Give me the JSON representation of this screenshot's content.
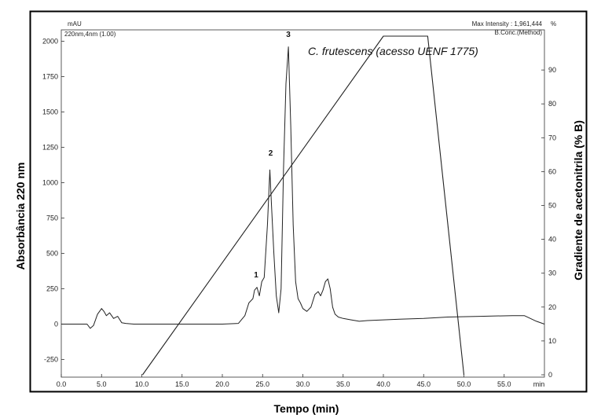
{
  "chart_data": {
    "type": "line",
    "title": "C. frutescens (acesso UENF 1775)",
    "xlabel": "Tempo (min)",
    "ylabel": "Absorbância 220 nm",
    "y2label": "Gradiente de acetonitrila (% B)",
    "xlim": [
      0,
      60
    ],
    "ylim": [
      -375,
      2080
    ],
    "y2lim": [
      0,
      100
    ],
    "x_ticks": [
      "0.0",
      "5.0",
      "10.0",
      "15.0",
      "20.0",
      "25.0",
      "30.0",
      "35.0",
      "40.0",
      "45.0",
      "50.0",
      "55.0"
    ],
    "x_unit": "min",
    "y_ticks": [
      "2000",
      "1750",
      "1500",
      "1250",
      "1000",
      "750",
      "500",
      "250",
      "0",
      "-250"
    ],
    "y2_ticks": [
      "90",
      "80",
      "70",
      "60",
      "50",
      "40",
      "30",
      "20",
      "10",
      "0"
    ],
    "y_unit": "mAU",
    "y2_unit": "%",
    "header_left": "220nm,4nm (1.00)",
    "header_right_top": "Max Intensity : 1,961,444",
    "header_right_bottom": "B.Conc.(Method)",
    "grid": false,
    "peak_labels": [
      {
        "label": "1",
        "x": 24.2,
        "y": 330
      },
      {
        "label": "2",
        "x": 26.0,
        "y": 1190
      },
      {
        "label": "3",
        "x": 28.2,
        "y": 2030
      }
    ],
    "series": [
      {
        "name": "220nm,4nm (1.00)",
        "axis": "left",
        "color": "#222222",
        "x": [
          0,
          3.2,
          3.6,
          4.0,
          4.5,
          5.0,
          5.3,
          5.6,
          6.0,
          6.5,
          7.0,
          7.5,
          8.0,
          9.0,
          12,
          16,
          20,
          22.0,
          22.8,
          23.3,
          23.8,
          24.0,
          24.3,
          24.6,
          24.9,
          25.2,
          25.6,
          25.9,
          26.1,
          26.4,
          26.7,
          27.0,
          27.3,
          27.6,
          27.9,
          28.2,
          28.5,
          28.8,
          29.1,
          29.4,
          29.7,
          30.0,
          30.5,
          31.0,
          31.5,
          31.9,
          32.2,
          32.5,
          32.8,
          33.1,
          33.4,
          33.7,
          34.0,
          34.4,
          35.0,
          36.0,
          37.0,
          38.0,
          40.0,
          42.0,
          45.0,
          48.0,
          52.0,
          56.0,
          57.5,
          59.0,
          60.0
        ],
        "y": [
          0,
          0,
          -30,
          -10,
          70,
          110,
          90,
          60,
          80,
          40,
          55,
          10,
          5,
          0,
          0,
          0,
          0,
          5,
          60,
          150,
          180,
          240,
          260,
          200,
          300,
          330,
          700,
          1090,
          850,
          500,
          200,
          80,
          250,
          1100,
          1700,
          1960,
          1400,
          700,
          300,
          180,
          150,
          110,
          90,
          120,
          210,
          230,
          200,
          240,
          300,
          320,
          250,
          120,
          70,
          50,
          40,
          30,
          20,
          25,
          30,
          35,
          40,
          50,
          55,
          60,
          60,
          20,
          0
        ]
      },
      {
        "name": "B.Conc.(Method)",
        "axis": "right",
        "color": "#222222",
        "x": [
          10.1,
          40.0,
          45.5,
          50.0
        ],
        "y": [
          0,
          100,
          100,
          0
        ]
      }
    ]
  }
}
